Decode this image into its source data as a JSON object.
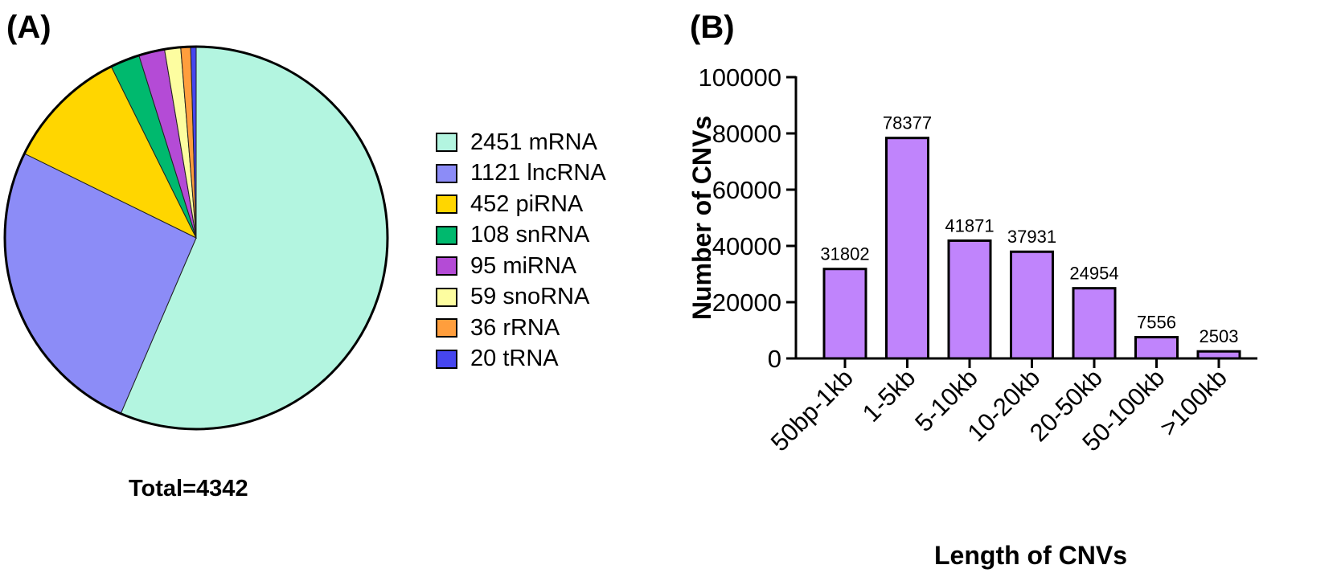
{
  "panel_a": {
    "label": "(A)",
    "total": "Total=4342"
  },
  "panel_b": {
    "label": "(B)"
  },
  "chart_data": [
    {
      "type": "pie",
      "slices": [
        {
          "label": "2451 mRNA",
          "value": 2451,
          "color": "#b3f5e0"
        },
        {
          "label": "1121 lncRNA",
          "value": 1121,
          "color": "#8c8cf7"
        },
        {
          "label": "452 piRNA",
          "value": 452,
          "color": "#ffd600"
        },
        {
          "label": "108 snRNA",
          "value": 108,
          "color": "#00b96e"
        },
        {
          "label": "95 miRNA",
          "value": 95,
          "color": "#b44bd6"
        },
        {
          "label": "59 snoRNA",
          "value": 59,
          "color": "#fdfda0"
        },
        {
          "label": "36 rRNA",
          "value": 36,
          "color": "#ff9e3d"
        },
        {
          "label": "20 tRNA",
          "value": 20,
          "color": "#4646ef"
        }
      ],
      "legend_position": "right"
    },
    {
      "type": "bar",
      "categories": [
        "50bp-1kb",
        "1-5kb",
        "5-10kb",
        "10-20kb",
        "20-50kb",
        "50-100kb",
        ">100kb"
      ],
      "values": [
        31802,
        78377,
        41871,
        37931,
        24954,
        7556,
        2503
      ],
      "data_labels": [
        "31802",
        "78377",
        "41871",
        "37931",
        "24954",
        "7556",
        "2503"
      ],
      "xlabel": "Length of CNVs",
      "ylabel": "Number of CNVs",
      "ylim": [
        0,
        100000
      ],
      "yticks": [
        "0",
        "20000",
        "40000",
        "60000",
        "80000",
        "100000"
      ],
      "bar_color": "#c084fc",
      "grid": false
    }
  ]
}
